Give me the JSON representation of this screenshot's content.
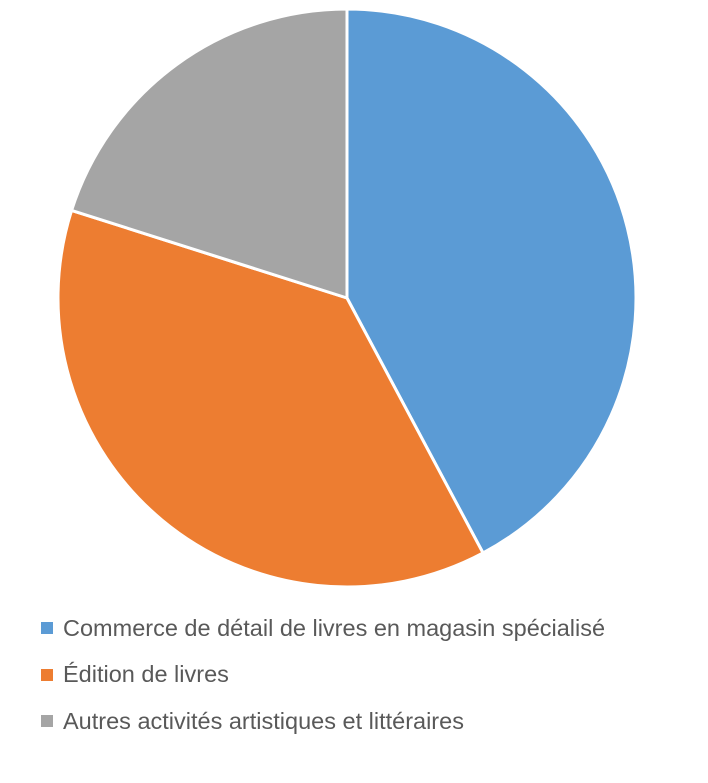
{
  "chart_data": {
    "type": "pie",
    "title": "",
    "slices": [
      {
        "label": "Commerce de détail de livres en magasin spécialisé",
        "value": 42.2,
        "color": "#5B9BD5"
      },
      {
        "label": "Édition de livres",
        "value": 37.7,
        "color": "#ED7D31"
      },
      {
        "label": "Autres activités artistiques et littéraires",
        "value": 20.1,
        "color": "#A5A5A5"
      }
    ],
    "legend_position": "bottom"
  }
}
